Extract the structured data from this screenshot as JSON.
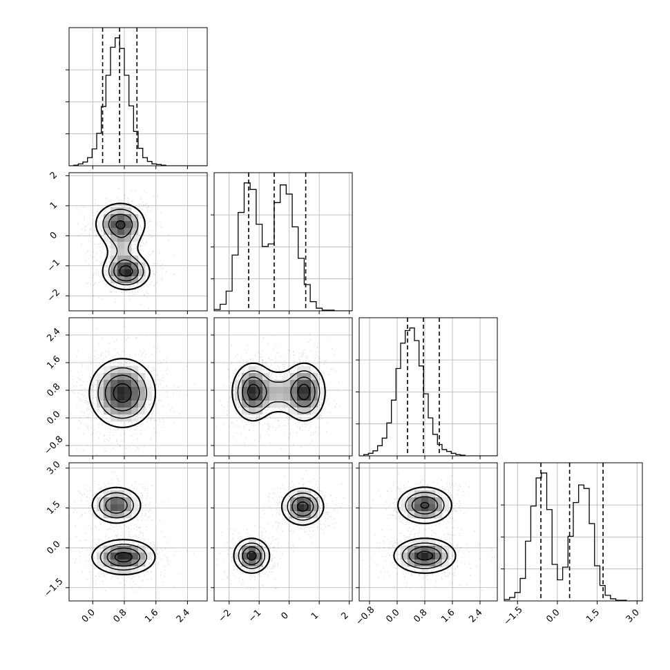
{
  "chart_data": {
    "type": "corner",
    "n_params": 4,
    "colors": {
      "ink": "#000000",
      "grid": "#b0b0b0",
      "frame": "#000000",
      "background": "#ffffff"
    },
    "grid": true,
    "quantile_lines": "dashed",
    "params": [
      {
        "range": [
          -0.6,
          2.9
        ],
        "ticks": [
          0.0,
          0.8,
          1.6,
          2.4
        ],
        "tick_labels": [
          "0.0",
          "0.8",
          "1.6",
          "2.4"
        ]
      },
      {
        "range": [
          -2.5,
          2.1
        ],
        "ticks": [
          -2,
          -1,
          0,
          1,
          2
        ],
        "tick_labels": [
          "−2",
          "−1",
          "0",
          "1",
          "2"
        ]
      },
      {
        "range": [
          -1.1,
          2.9
        ],
        "ticks": [
          -0.8,
          0.0,
          0.8,
          1.6,
          2.4
        ],
        "tick_labels": [
          "−0.8",
          "0.0",
          "0.8",
          "1.6",
          "2.4"
        ]
      },
      {
        "range": [
          -2.0,
          3.2
        ],
        "ticks": [
          -1.5,
          0.0,
          1.5,
          3.0
        ],
        "tick_labels": [
          "−1.5",
          "0.0",
          "1.5",
          "3.0"
        ]
      }
    ],
    "histograms": [
      {
        "param": 0,
        "bin_start": -0.6,
        "bin_width": 0.1167,
        "counts": [
          0,
          1,
          3,
          6,
          13,
          27,
          52,
          95,
          145,
          190,
          205,
          188,
          145,
          96,
          55,
          28,
          13,
          7,
          3,
          2,
          1,
          0,
          0,
          0,
          0,
          0,
          0,
          0,
          0,
          0
        ],
        "quantiles": [
          0.25,
          0.68,
          1.12
        ]
      },
      {
        "param": 1,
        "bin_start": -2.5,
        "bin_width": 0.2,
        "counts": [
          2,
          10,
          30,
          85,
          150,
          195,
          185,
          132,
          98,
          102,
          165,
          192,
          178,
          128,
          80,
          40,
          14,
          4,
          1,
          1,
          0,
          0,
          0
        ],
        "quantiles": [
          -1.35,
          -0.5,
          0.55
        ]
      },
      {
        "param": 2,
        "bin_start": -1.1,
        "bin_width": 0.1333,
        "counts": [
          0,
          2,
          4,
          8,
          16,
          28,
          52,
          88,
          138,
          178,
          198,
          202,
          182,
          142,
          98,
          60,
          34,
          18,
          10,
          7,
          4,
          2,
          1,
          0,
          0,
          0,
          0,
          0,
          0,
          0
        ],
        "quantiles": [
          0.3,
          0.76,
          1.22
        ]
      },
      {
        "param": 3,
        "bin_start": -2.0,
        "bin_width": 0.2,
        "counts": [
          2,
          5,
          12,
          32,
          85,
          135,
          175,
          182,
          130,
          52,
          30,
          48,
          92,
          140,
          165,
          160,
          110,
          50,
          22,
          8,
          3,
          1,
          1,
          0,
          0,
          0
        ],
        "quantiles": [
          -0.62,
          0.46,
          1.72
        ]
      }
    ],
    "pair_modes": [
      {
        "row": 1,
        "col": 0,
        "blobs": [
          {
            "cx": 0.7,
            "cy": 0.4,
            "sx": 0.32,
            "sy": 0.35,
            "w": 0.5
          },
          {
            "cx": 0.85,
            "cy": -1.2,
            "sx": 0.3,
            "sy": 0.3,
            "w": 0.55
          },
          {
            "cx": 0.75,
            "cy": -0.4,
            "sx": 0.25,
            "sy": 0.4,
            "w": 0.18
          }
        ]
      },
      {
        "row": 2,
        "col": 0,
        "blobs": [
          {
            "cx": 0.75,
            "cy": 0.72,
            "sx": 0.42,
            "sy": 0.5,
            "w": 1.0
          }
        ]
      },
      {
        "row": 2,
        "col": 1,
        "blobs": [
          {
            "cx": -1.2,
            "cy": 0.75,
            "sx": 0.35,
            "sy": 0.42,
            "w": 0.6
          },
          {
            "cx": 0.5,
            "cy": 0.75,
            "sx": 0.35,
            "sy": 0.42,
            "w": 0.6
          },
          {
            "cx": -0.35,
            "cy": 0.75,
            "sx": 0.3,
            "sy": 0.35,
            "w": 0.22
          }
        ]
      },
      {
        "row": 3,
        "col": 0,
        "blobs": [
          {
            "cx": 0.6,
            "cy": 1.6,
            "sx": 0.32,
            "sy": 0.35,
            "w": 0.55
          },
          {
            "cx": 0.78,
            "cy": -0.35,
            "sx": 0.4,
            "sy": 0.33,
            "w": 0.65
          }
        ]
      },
      {
        "row": 3,
        "col": 1,
        "blobs": [
          {
            "cx": -1.25,
            "cy": -0.3,
            "sx": 0.3,
            "sy": 0.33,
            "w": 0.6
          },
          {
            "cx": 0.45,
            "cy": 1.55,
            "sx": 0.35,
            "sy": 0.35,
            "w": 0.6
          }
        ]
      },
      {
        "row": 3,
        "col": 2,
        "blobs": [
          {
            "cx": 0.8,
            "cy": 1.6,
            "sx": 0.4,
            "sy": 0.35,
            "w": 0.6
          },
          {
            "cx": 0.8,
            "cy": -0.3,
            "sx": 0.45,
            "sy": 0.33,
            "w": 0.65
          }
        ]
      }
    ]
  }
}
